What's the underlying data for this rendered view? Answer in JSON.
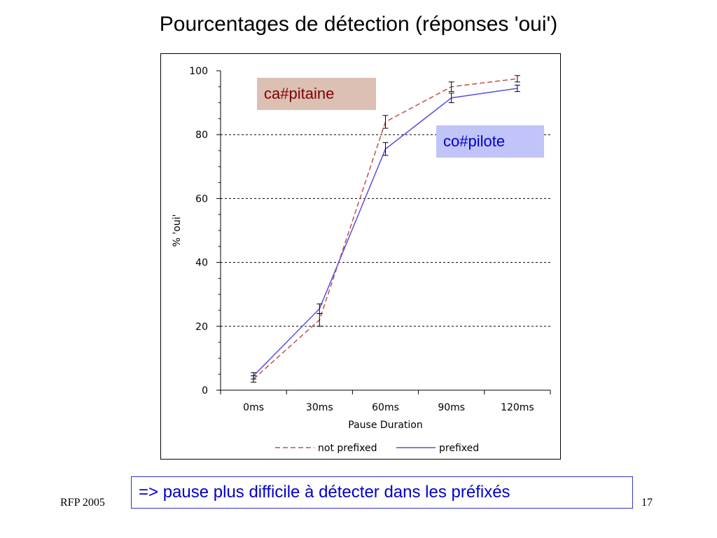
{
  "slide": {
    "title": "Pourcentages de détection (réponses 'oui')",
    "conclusion": "=> pause plus difficile à détecter dans les préfixés",
    "footer_left": "RFP 2005",
    "page_number": "17"
  },
  "annotations": {
    "capitaine": {
      "label": "ca#pitaine",
      "text_color": "#800000",
      "bg_color": "#dcc0b4"
    },
    "copilote": {
      "label": "co#pilote",
      "text_color": "#0000cc",
      "bg_color": "#c0c4f8"
    }
  },
  "colors": {
    "conclusion_text": "#0000cc",
    "conclusion_border": "#3333cc",
    "gridline": "#000000"
  },
  "chart_data": {
    "type": "line",
    "categories": [
      "0ms",
      "30ms",
      "60ms",
      "90ms",
      "120ms"
    ],
    "xlabel": "Pause Duration",
    "ylabel": "% 'oui'",
    "ylim": [
      0,
      100
    ],
    "yticks": [
      0,
      20,
      40,
      60,
      80,
      100
    ],
    "grid": "horizontal dashed",
    "legend_position": "bottom",
    "series": [
      {
        "name": "not prefixed",
        "color": "#c0504d",
        "style": "dashed",
        "values": [
          3.5,
          22,
          84,
          95,
          97.5
        ],
        "error": [
          1,
          2,
          2,
          1.5,
          1
        ]
      },
      {
        "name": "prefixed",
        "color": "#5a4fe0",
        "style": "solid",
        "values": [
          4.5,
          25.5,
          75.5,
          91.5,
          94.5
        ],
        "error": [
          1,
          1.5,
          2,
          1.5,
          1
        ]
      }
    ]
  }
}
